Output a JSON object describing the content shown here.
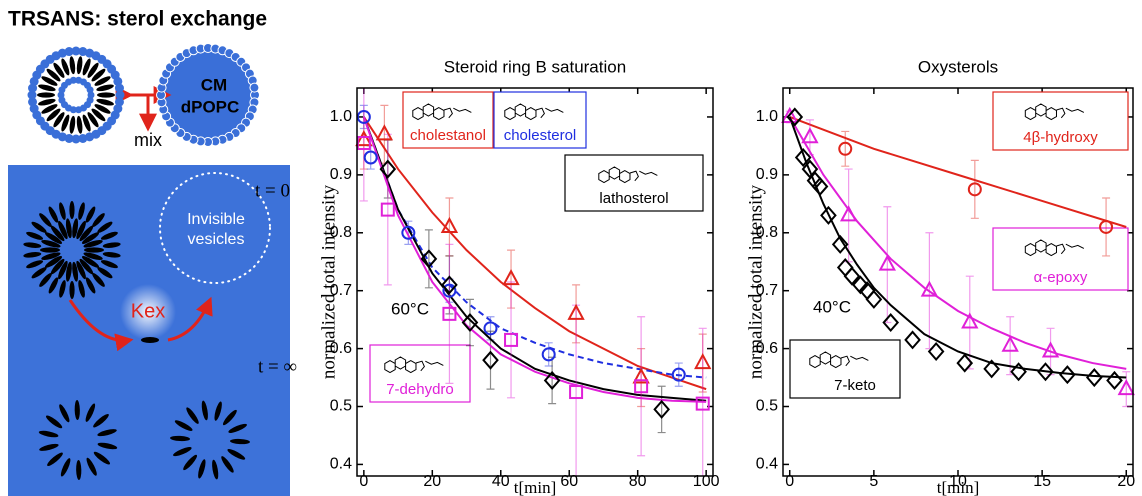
{
  "figure_title": "TRSANS: sterol exchange",
  "schematic": {
    "cm": "CM",
    "dpopc": "dPOPC",
    "mix": "mix",
    "t_start": "t = 0",
    "invisible": [
      "Invisible",
      "vesicles"
    ],
    "rate": "Kex",
    "t_end": "t = ∞"
  },
  "chart_data": [
    {
      "type": "scatter",
      "title": "Steroid ring B saturation",
      "xlabel": "t[min]",
      "ylabel": "normalized total intensity",
      "annotation": "60°C",
      "xlim": [
        -2,
        102
      ],
      "ylim": [
        0.38,
        1.05
      ],
      "xticks": [
        0,
        20,
        40,
        60,
        80,
        100
      ],
      "yticks": [
        0.4,
        0.5,
        0.6,
        0.7,
        0.8,
        0.9,
        {
          "value": 1,
          "label": "1.0"
        }
      ],
      "series": [
        {
          "name": "cholestanol",
          "color": "#e0241b",
          "marker": "triangle",
          "x": [
            0,
            6,
            25,
            43,
            62,
            81,
            99
          ],
          "values": [
            0.96,
            0.97,
            0.81,
            0.72,
            0.66,
            0.55,
            0.575
          ],
          "errors": [
            0.05,
            0.05,
            0.05,
            0.05,
            0.05,
            0.05,
            0.05
          ],
          "fit": {
            "dash": false,
            "x": [
              0,
              10,
              20,
              30,
              40,
              50,
              60,
              70,
              80,
              90,
              100
            ],
            "values": [
              1.0,
              0.91,
              0.835,
              0.77,
              0.715,
              0.67,
              0.63,
              0.6,
              0.57,
              0.55,
              0.53
            ]
          }
        },
        {
          "name": "cholesterol",
          "color": "#1f2ee0",
          "marker": "circle",
          "x": [
            0,
            2,
            13,
            25,
            37,
            54,
            92
          ],
          "values": [
            1.0,
            0.93,
            0.8,
            0.7,
            0.635,
            0.59,
            0.555
          ],
          "errors": [
            0.02,
            0.02,
            0.02,
            0.02,
            0.02,
            0.02,
            0.02
          ],
          "fit": {
            "dash": true,
            "x": [
              0,
              10,
              20,
              30,
              40,
              50,
              60,
              70,
              80,
              90,
              100
            ],
            "values": [
              1.0,
              0.84,
              0.74,
              0.68,
              0.635,
              0.61,
              0.59,
              0.575,
              0.565,
              0.555,
              0.55
            ]
          }
        },
        {
          "name": "lathosterol",
          "color": "#000000",
          "marker": "diamond",
          "x": [
            7,
            19,
            25,
            31,
            37,
            55,
            87
          ],
          "values": [
            0.91,
            0.755,
            0.71,
            0.645,
            0.58,
            0.545,
            0.495
          ],
          "errors": [
            0.05,
            0.05,
            0.05,
            0.04,
            0.05,
            0.04,
            0.04
          ],
          "fit": {
            "dash": false,
            "x": [
              0,
              10,
              20,
              30,
              40,
              50,
              60,
              70,
              80,
              90,
              100
            ],
            "values": [
              1.0,
              0.84,
              0.73,
              0.655,
              0.6,
              0.565,
              0.545,
              0.53,
              0.52,
              0.515,
              0.51
            ]
          }
        },
        {
          "name": "7-dehydro",
          "color": "#e020d8",
          "marker": "square",
          "x": [
            0,
            7,
            25,
            43,
            62,
            81,
            99
          ],
          "values": [
            0.955,
            0.84,
            0.66,
            0.615,
            0.525,
            0.535,
            0.505
          ],
          "errors": [
            0.1,
            0.13,
            0.12,
            0.1,
            0.15,
            0.12,
            0.13
          ],
          "fit": {
            "dash": false,
            "x": [
              0,
              10,
              20,
              30,
              40,
              50,
              60,
              70,
              80,
              90,
              100
            ],
            "values": [
              1.0,
              0.83,
              0.715,
              0.64,
              0.59,
              0.56,
              0.54,
              0.525,
              0.515,
              0.51,
              0.508
            ]
          }
        }
      ]
    },
    {
      "type": "scatter",
      "title": "Oxysterols",
      "xlabel": "t[min]",
      "ylabel": "normalized total intensity",
      "annotation": "40°C",
      "xlim": [
        -0.4,
        20.4
      ],
      "ylim": [
        0.38,
        1.05
      ],
      "xticks": [
        0,
        5,
        10,
        15,
        20
      ],
      "yticks": [
        0.4,
        0.5,
        0.6,
        0.7,
        0.8,
        0.9,
        {
          "value": 1,
          "label": "1.0"
        }
      ],
      "series": [
        {
          "name": "4β-hydroxy",
          "color": "#e0241b",
          "marker": "circle",
          "x": [
            3.3,
            11,
            18.8
          ],
          "values": [
            0.945,
            0.875,
            0.81
          ],
          "errors": [
            0.03,
            0.05,
            0.05
          ],
          "fit": {
            "dash": false,
            "x": [
              0,
              5,
              10,
              15,
              20
            ],
            "values": [
              1.0,
              0.945,
              0.9,
              0.855,
              0.81
            ]
          }
        },
        {
          "name": "α-epoxy",
          "color": "#e020d8",
          "marker": "triangle",
          "x": [
            0,
            1.2,
            3.5,
            5.8,
            8.3,
            10.7,
            13.1,
            15.5,
            20
          ],
          "values": [
            1.0,
            0.965,
            0.83,
            0.745,
            0.7,
            0.645,
            0.605,
            0.595,
            0.53
          ],
          "errors": [
            0.01,
            0.03,
            0.08,
            0.1,
            0.1,
            0.08,
            0.05,
            0.04,
            0.03
          ],
          "fit": {
            "dash": false,
            "x": [
              0,
              2,
              4,
              6,
              8,
              10,
              12,
              14,
              16,
              18,
              20
            ],
            "values": [
              1.0,
              0.9,
              0.82,
              0.755,
              0.705,
              0.665,
              0.635,
              0.61,
              0.59,
              0.575,
              0.565
            ]
          }
        },
        {
          "name": "7-keto",
          "color": "#000000",
          "marker": "diamond",
          "x": [
            0.3,
            0.8,
            1.2,
            1.5,
            1.8,
            2.3,
            3.0,
            3.3,
            3.7,
            4.2,
            4.6,
            5.0,
            6.0,
            7.3,
            8.7,
            10.4,
            12,
            13.6,
            15.2,
            16.5,
            18.1,
            19.3
          ],
          "values": [
            1.0,
            0.93,
            0.91,
            0.89,
            0.88,
            0.83,
            0.78,
            0.74,
            0.725,
            0.71,
            0.7,
            0.685,
            0.645,
            0.615,
            0.595,
            0.575,
            0.565,
            0.56,
            0.56,
            0.555,
            0.55,
            0.545
          ],
          "fit": {
            "dash": false,
            "x": [
              0,
              1,
              2,
              3,
              4,
              5,
              6,
              8,
              10,
              12,
              14,
              16,
              18,
              20
            ],
            "values": [
              1.0,
              0.92,
              0.85,
              0.79,
              0.745,
              0.705,
              0.675,
              0.625,
              0.595,
              0.575,
              0.565,
              0.558,
              0.553,
              0.55
            ]
          }
        }
      ]
    }
  ]
}
